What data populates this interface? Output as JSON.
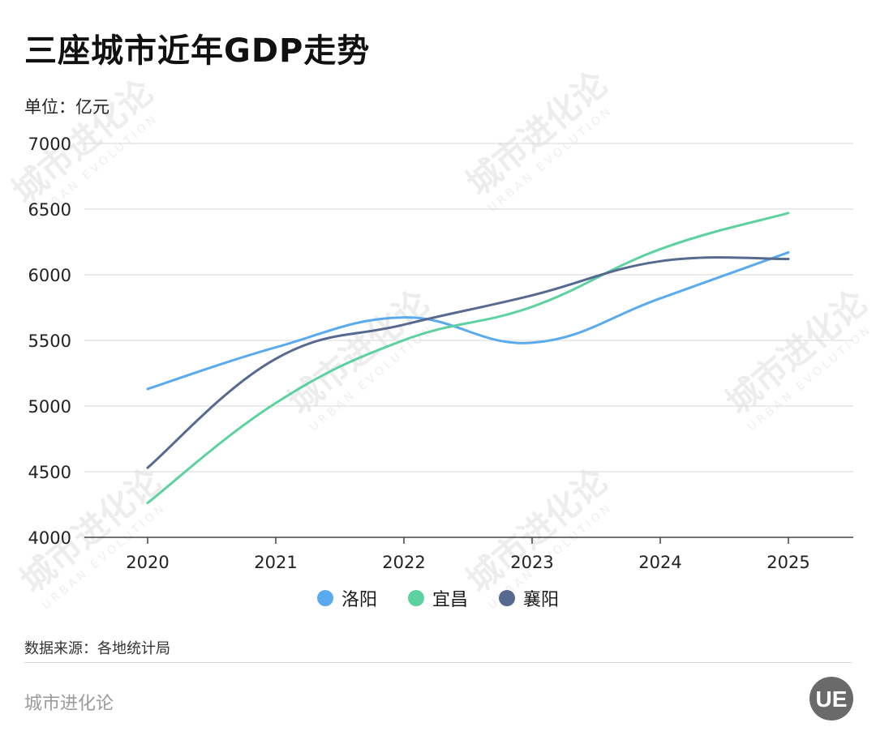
{
  "title": "三座城市近年GDP走势",
  "unit_label": "单位：亿元",
  "source": "数据来源：各地统计局",
  "brand": "城市进化论",
  "logo_text": "UE",
  "watermark": "城市进化论",
  "watermark_sub": "URBAN EVOLUTION",
  "chart_data": {
    "type": "line",
    "categories": [
      "2020",
      "2021",
      "2022",
      "2023",
      "2024",
      "2025"
    ],
    "ylim": [
      4000,
      7000
    ],
    "yticks": [
      4000,
      4500,
      5000,
      5500,
      6000,
      6500,
      7000
    ],
    "grid": true,
    "legend_position": "bottom",
    "series": [
      {
        "name": "洛阳",
        "color": "#5aaaf0",
        "values": [
          5130,
          5447,
          5675,
          5482,
          5820,
          6170
        ]
      },
      {
        "name": "宜昌",
        "color": "#5ed1a0",
        "values": [
          4262,
          5023,
          5502,
          5756,
          6195,
          6470
        ]
      },
      {
        "name": "襄阳",
        "color": "#56698f",
        "values": [
          4530,
          5360,
          5620,
          5843,
          6103,
          6120
        ]
      }
    ]
  }
}
